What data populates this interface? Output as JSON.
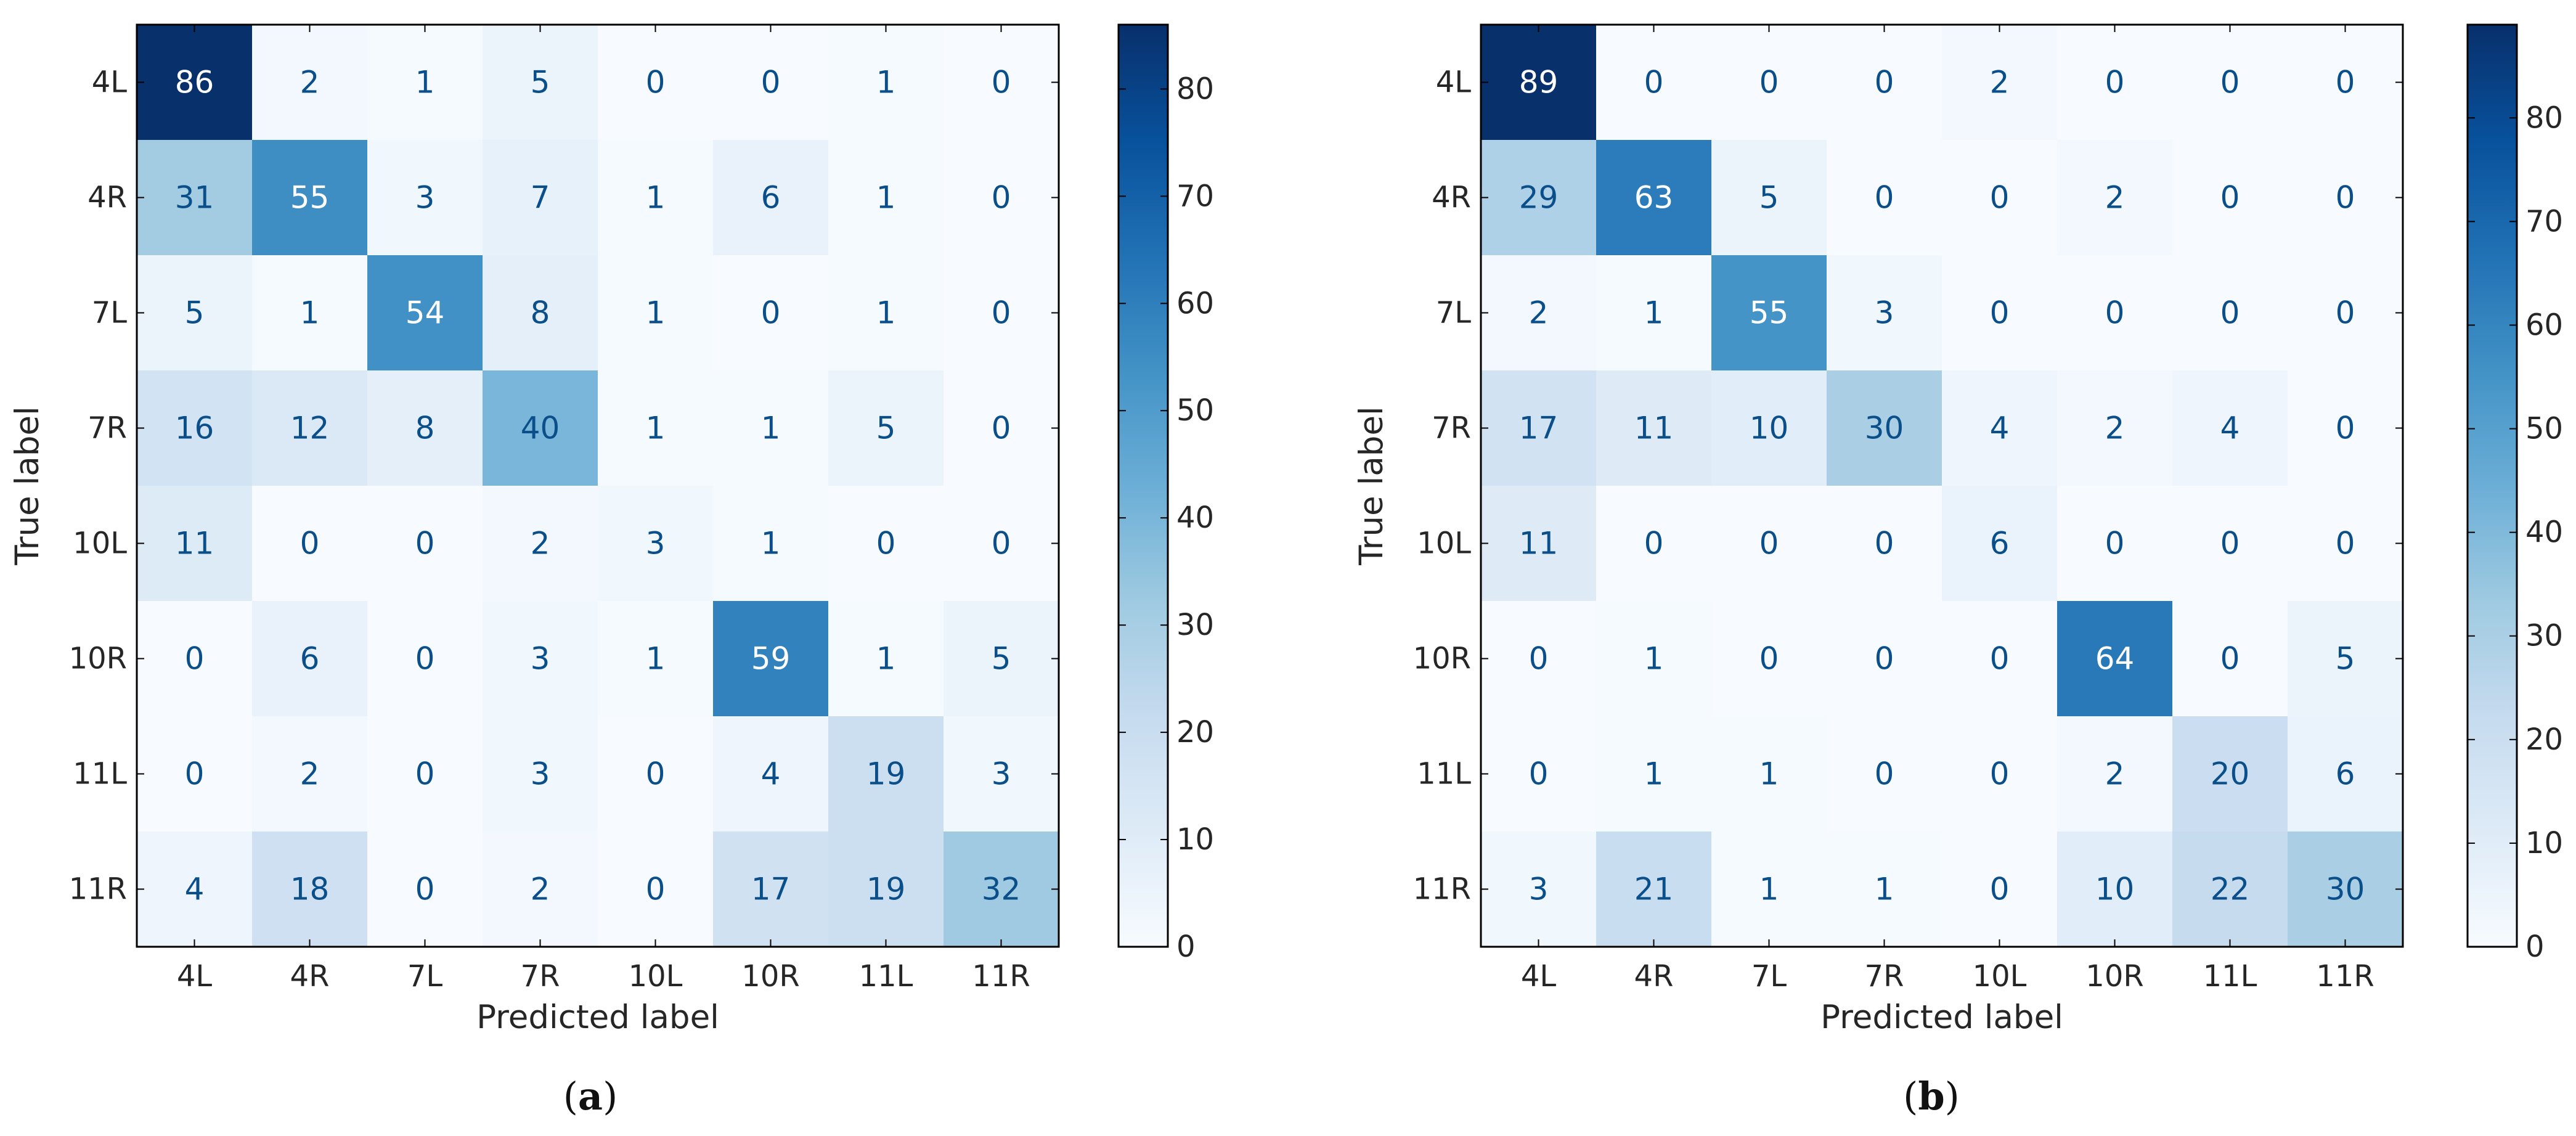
{
  "chart_data": [
    {
      "type": "heatmap",
      "caption_letter": "a",
      "xlabel": "Predicted label",
      "ylabel": "True label",
      "x_categories": [
        "4L",
        "4R",
        "7L",
        "7R",
        "10L",
        "10R",
        "11L",
        "11R"
      ],
      "y_categories": [
        "4L",
        "4R",
        "7L",
        "7R",
        "10L",
        "10R",
        "11L",
        "11R"
      ],
      "matrix": [
        [
          86,
          2,
          1,
          5,
          0,
          0,
          1,
          0
        ],
        [
          31,
          55,
          3,
          7,
          1,
          6,
          1,
          0
        ],
        [
          5,
          1,
          54,
          8,
          1,
          0,
          1,
          0
        ],
        [
          16,
          12,
          8,
          40,
          1,
          1,
          5,
          0
        ],
        [
          11,
          0,
          0,
          2,
          3,
          1,
          0,
          0
        ],
        [
          0,
          6,
          0,
          3,
          1,
          59,
          1,
          5
        ],
        [
          0,
          2,
          0,
          3,
          0,
          4,
          19,
          3
        ],
        [
          4,
          18,
          0,
          2,
          0,
          17,
          19,
          32
        ]
      ],
      "colorbar": {
        "min": 0,
        "max": 86,
        "ticks": [
          0,
          10,
          20,
          30,
          40,
          50,
          60,
          70,
          80
        ]
      },
      "colormap": "Blues"
    },
    {
      "type": "heatmap",
      "caption_letter": "b",
      "xlabel": "Predicted label",
      "ylabel": "True label",
      "x_categories": [
        "4L",
        "4R",
        "7L",
        "7R",
        "10L",
        "10R",
        "11L",
        "11R"
      ],
      "y_categories": [
        "4L",
        "4R",
        "7L",
        "7R",
        "10L",
        "10R",
        "11L",
        "11R"
      ],
      "matrix": [
        [
          89,
          0,
          0,
          0,
          2,
          0,
          0,
          0
        ],
        [
          29,
          63,
          5,
          0,
          0,
          2,
          0,
          0
        ],
        [
          2,
          1,
          55,
          3,
          0,
          0,
          0,
          0
        ],
        [
          17,
          11,
          10,
          30,
          4,
          2,
          4,
          0
        ],
        [
          11,
          0,
          0,
          0,
          6,
          0,
          0,
          0
        ],
        [
          0,
          1,
          0,
          0,
          0,
          64,
          0,
          5
        ],
        [
          0,
          1,
          1,
          0,
          0,
          2,
          20,
          6
        ],
        [
          3,
          21,
          1,
          1,
          0,
          10,
          22,
          30
        ]
      ],
      "colorbar": {
        "min": 0,
        "max": 89,
        "ticks": [
          0,
          10,
          20,
          30,
          40,
          50,
          60,
          70,
          80
        ]
      },
      "colormap": "Blues"
    }
  ]
}
